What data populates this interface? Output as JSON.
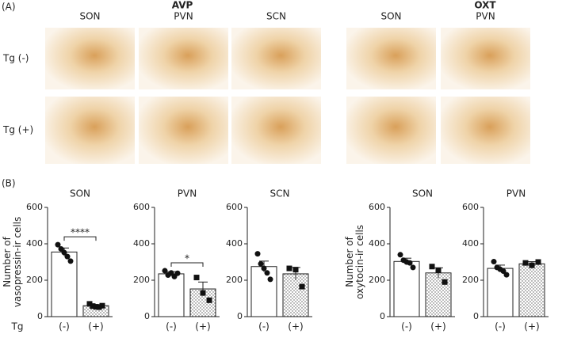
{
  "panel_a": {
    "label": "(A)",
    "groups": [
      "AVP",
      "OXT"
    ],
    "columns": [
      "SON",
      "PVN",
      "SCN",
      "SON",
      "PVN"
    ],
    "rows": [
      "Tg (-)",
      "Tg (+)"
    ]
  },
  "panel_b": {
    "label": "(B)",
    "x_group_label": "Tg"
  },
  "chart_data": [
    {
      "type": "bar",
      "title": "SON",
      "y_label": [
        "Number of",
        "vasopressin-ir cells"
      ],
      "categories": [
        "(-)",
        "(+)"
      ],
      "values": [
        355,
        60
      ],
      "errors": [
        22,
        6
      ],
      "points": [
        [
          395,
          372,
          352,
          330,
          305
        ],
        [
          70,
          58,
          54,
          52,
          60
        ]
      ],
      "ylim": [
        0,
        600
      ],
      "yticks": [
        0,
        200,
        400,
        600
      ],
      "significance": "****"
    },
    {
      "type": "bar",
      "title": "PVN",
      "categories": [
        "(-)",
        "(+)"
      ],
      "values": [
        235,
        152
      ],
      "errors": [
        12,
        38
      ],
      "points": [
        [
          252,
          228,
          240,
          220,
          238
        ],
        [
          215,
          130,
          90
        ]
      ],
      "ylim": [
        0,
        600
      ],
      "yticks": [
        0,
        200,
        400,
        600
      ],
      "significance": "*"
    },
    {
      "type": "bar",
      "title": "SCN",
      "categories": [
        "(-)",
        "(+)"
      ],
      "values": [
        275,
        235
      ],
      "errors": [
        30,
        35
      ],
      "points": [
        [
          345,
          290,
          265,
          240,
          205
        ],
        [
          265,
          258,
          165
        ]
      ],
      "ylim": [
        0,
        600
      ],
      "yticks": [
        0,
        200,
        400,
        600
      ]
    },
    {
      "type": "bar",
      "title": "SON",
      "y_label": [
        "Number of",
        "oxytocin-ir cells"
      ],
      "categories": [
        "(-)",
        "(+)"
      ],
      "values": [
        303,
        240
      ],
      "errors": [
        18,
        28
      ],
      "points": [
        [
          340,
          310,
          300,
          295,
          270
        ],
        [
          275,
          255,
          190
        ]
      ],
      "ylim": [
        0,
        600
      ],
      "yticks": [
        0,
        200,
        400,
        600
      ]
    },
    {
      "type": "bar",
      "title": "PVN",
      "categories": [
        "(-)",
        "(+)"
      ],
      "values": [
        265,
        290
      ],
      "errors": [
        18,
        12
      ],
      "points": [
        [
          302,
          270,
          260,
          250,
          230
        ],
        [
          295,
          282,
          300
        ]
      ],
      "ylim": [
        0,
        600
      ],
      "yticks": [
        0,
        200,
        400,
        600
      ]
    }
  ]
}
